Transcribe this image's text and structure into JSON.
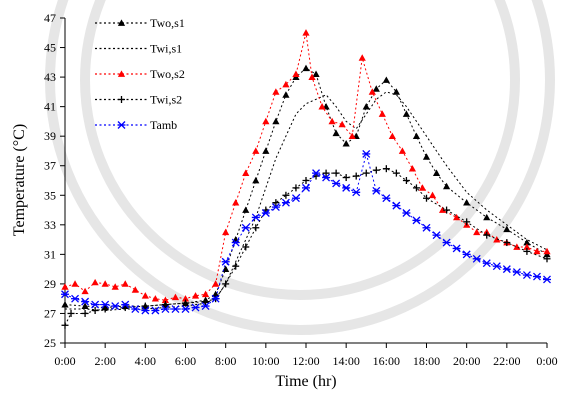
{
  "chart_data": {
    "type": "scatter",
    "xlabel": "Time (hr)",
    "ylabel": "Temperature (°C)",
    "xlim": [
      0,
      24
    ],
    "ylim": [
      25,
      47
    ],
    "xticks": [
      0,
      2,
      4,
      6,
      8,
      10,
      12,
      14,
      16,
      18,
      20,
      22,
      24
    ],
    "xtick_labels": [
      "0:00",
      "2:00",
      "4:00",
      "6:00",
      "8:00",
      "10:00",
      "12:00",
      "14:00",
      "16:00",
      "18:00",
      "20:00",
      "22:00",
      "0:00"
    ],
    "yticks": [
      25,
      27,
      29,
      31,
      33,
      35,
      37,
      39,
      41,
      43,
      45,
      47
    ],
    "ytick_labels": [
      "25",
      "27",
      "29",
      "31",
      "33",
      "35",
      "37",
      "39",
      "41",
      "43",
      "45",
      "47"
    ],
    "grid": false,
    "legend_position": "top-left",
    "series": [
      {
        "name": "Two,s1",
        "color": "#000000",
        "marker": "triangle",
        "points": [
          [
            0,
            27.6
          ],
          [
            1,
            27.5
          ],
          [
            2,
            27.4
          ],
          [
            3,
            27.5
          ],
          [
            4,
            27.5
          ],
          [
            5,
            27.6
          ],
          [
            6,
            27.7
          ],
          [
            7,
            27.9
          ],
          [
            7.5,
            28.3
          ],
          [
            8,
            30.0
          ],
          [
            8.5,
            32.0
          ],
          [
            9,
            34.0
          ],
          [
            9.5,
            36.0
          ],
          [
            10,
            38.0
          ],
          [
            10.5,
            40.0
          ],
          [
            11,
            41.8
          ],
          [
            11.5,
            43.0
          ],
          [
            12,
            43.6
          ],
          [
            12.5,
            43.2
          ],
          [
            13,
            41.0
          ],
          [
            13.5,
            39.2
          ],
          [
            14,
            38.5
          ],
          [
            14.5,
            39.0
          ],
          [
            15,
            41.0
          ],
          [
            15.5,
            42.2
          ],
          [
            16,
            42.8
          ],
          [
            16.5,
            42.0
          ],
          [
            17,
            40.5
          ],
          [
            17.5,
            39.0
          ],
          [
            18,
            37.6
          ],
          [
            18.5,
            36.5
          ],
          [
            19,
            35.6
          ],
          [
            20,
            34.5
          ],
          [
            21,
            33.5
          ],
          [
            22,
            32.7
          ],
          [
            23,
            31.8
          ],
          [
            24,
            31.0
          ]
        ]
      },
      {
        "name": "Twi,s1",
        "color": "#000000",
        "marker": "none",
        "points": [
          [
            0,
            27.3
          ],
          [
            1,
            27.3
          ],
          [
            2,
            27.2
          ],
          [
            3,
            27.3
          ],
          [
            4,
            27.3
          ],
          [
            5,
            27.4
          ],
          [
            6,
            27.5
          ],
          [
            7,
            27.7
          ],
          [
            7.5,
            28.0
          ],
          [
            8,
            29.0
          ],
          [
            8.5,
            30.5
          ],
          [
            9,
            32.0
          ],
          [
            9.5,
            33.5
          ],
          [
            10,
            35.5
          ],
          [
            10.5,
            37.5
          ],
          [
            11,
            39.0
          ],
          [
            11.5,
            40.5
          ],
          [
            12,
            41.2
          ],
          [
            12.5,
            41.5
          ],
          [
            13,
            41.8
          ],
          [
            13.5,
            41.0
          ],
          [
            14,
            40.0
          ],
          [
            14.5,
            39.5
          ],
          [
            15,
            40.5
          ],
          [
            15.5,
            41.5
          ],
          [
            16,
            42.0
          ],
          [
            16.5,
            41.8
          ],
          [
            17,
            41.0
          ],
          [
            17.5,
            40.0
          ],
          [
            18,
            39.0
          ],
          [
            18.5,
            38.0
          ],
          [
            19,
            37.0
          ],
          [
            20,
            35.2
          ],
          [
            21,
            34.0
          ],
          [
            22,
            33.0
          ],
          [
            23,
            32.0
          ],
          [
            24,
            31.3
          ]
        ]
      },
      {
        "name": "Two,s2",
        "color": "#ff0000",
        "marker": "triangle",
        "points": [
          [
            0,
            28.8
          ],
          [
            0.5,
            29.0
          ],
          [
            1,
            28.5
          ],
          [
            1.5,
            29.1
          ],
          [
            2,
            29.0
          ],
          [
            2.5,
            28.8
          ],
          [
            3,
            29.0
          ],
          [
            3.5,
            28.6
          ],
          [
            4,
            28.2
          ],
          [
            4.5,
            28.0
          ],
          [
            5,
            27.9
          ],
          [
            5.5,
            28.1
          ],
          [
            6,
            28.0
          ],
          [
            6.5,
            28.2
          ],
          [
            7,
            28.3
          ],
          [
            7.5,
            29.0
          ],
          [
            8,
            32.5
          ],
          [
            8.5,
            34.5
          ],
          [
            9,
            36.5
          ],
          [
            9.5,
            38.0
          ],
          [
            10,
            40.0
          ],
          [
            10.5,
            42.0
          ],
          [
            11,
            42.5
          ],
          [
            11.5,
            43.2
          ],
          [
            12,
            46.0
          ],
          [
            12.3,
            43.0
          ],
          [
            12.8,
            41.0
          ],
          [
            13.3,
            40.0
          ],
          [
            13.8,
            39.8
          ],
          [
            14.3,
            39.0
          ],
          [
            14.8,
            44.3
          ],
          [
            15.3,
            42.0
          ],
          [
            15.8,
            40.5
          ],
          [
            16.3,
            39.0
          ],
          [
            16.8,
            38.0
          ],
          [
            17.3,
            36.8
          ],
          [
            17.8,
            35.5
          ],
          [
            18.3,
            35.0
          ],
          [
            18.8,
            34.0
          ],
          [
            19.5,
            33.5
          ],
          [
            20,
            33.0
          ],
          [
            20.5,
            32.5
          ],
          [
            21,
            32.5
          ],
          [
            21.5,
            32.0
          ],
          [
            22,
            31.8
          ],
          [
            22.5,
            31.5
          ],
          [
            23,
            31.5
          ],
          [
            23.5,
            31.2
          ],
          [
            24,
            31.2
          ]
        ]
      },
      {
        "name": "Twi,s2",
        "color": "#000000",
        "marker": "plus",
        "points": [
          [
            0,
            26.2
          ],
          [
            0.3,
            27.0
          ],
          [
            1,
            27.0
          ],
          [
            1.5,
            27.2
          ],
          [
            2,
            27.3
          ],
          [
            3,
            27.4
          ],
          [
            4,
            27.5
          ],
          [
            5,
            27.6
          ],
          [
            6,
            27.7
          ],
          [
            7,
            27.8
          ],
          [
            7.5,
            28.0
          ],
          [
            8,
            29.0
          ],
          [
            8.5,
            30.2
          ],
          [
            9,
            31.5
          ],
          [
            9.5,
            32.8
          ],
          [
            10,
            34.0
          ],
          [
            10.5,
            34.5
          ],
          [
            11,
            35.0
          ],
          [
            11.5,
            35.5
          ],
          [
            12,
            36.0
          ],
          [
            12.5,
            36.3
          ],
          [
            13,
            36.5
          ],
          [
            13.5,
            36.5
          ],
          [
            14,
            36.2
          ],
          [
            14.5,
            36.3
          ],
          [
            15,
            36.5
          ],
          [
            15.5,
            36.7
          ],
          [
            16,
            36.8
          ],
          [
            16.5,
            36.5
          ],
          [
            17,
            36.0
          ],
          [
            17.5,
            35.5
          ],
          [
            18,
            34.8
          ],
          [
            19,
            34.0
          ],
          [
            20,
            33.2
          ],
          [
            21,
            32.3
          ],
          [
            22,
            31.8
          ],
          [
            23,
            31.2
          ],
          [
            24,
            30.7
          ]
        ]
      },
      {
        "name": "Tamb",
        "color": "#0000ff",
        "marker": "star",
        "points": [
          [
            0,
            28.3
          ],
          [
            0.5,
            28.0
          ],
          [
            1,
            27.8
          ],
          [
            1.5,
            27.6
          ],
          [
            2,
            27.6
          ],
          [
            2.5,
            27.5
          ],
          [
            3,
            27.6
          ],
          [
            3.5,
            27.3
          ],
          [
            4,
            27.2
          ],
          [
            4.5,
            27.2
          ],
          [
            5,
            27.3
          ],
          [
            5.5,
            27.3
          ],
          [
            6,
            27.3
          ],
          [
            6.5,
            27.4
          ],
          [
            7,
            27.5
          ],
          [
            7.5,
            28.0
          ],
          [
            8,
            30.5
          ],
          [
            8.5,
            31.8
          ],
          [
            9,
            32.8
          ],
          [
            9.5,
            33.5
          ],
          [
            10,
            33.8
          ],
          [
            10.5,
            34.2
          ],
          [
            11,
            34.5
          ],
          [
            11.5,
            34.8
          ],
          [
            12,
            35.5
          ],
          [
            12.5,
            36.5
          ],
          [
            13,
            36.2
          ],
          [
            13.5,
            35.8
          ],
          [
            14,
            35.5
          ],
          [
            14.5,
            35.2
          ],
          [
            15,
            37.8
          ],
          [
            15.5,
            35.3
          ],
          [
            16,
            34.8
          ],
          [
            16.5,
            34.3
          ],
          [
            17,
            33.8
          ],
          [
            17.5,
            33.3
          ],
          [
            18,
            32.8
          ],
          [
            18.5,
            32.3
          ],
          [
            19,
            31.8
          ],
          [
            19.5,
            31.4
          ],
          [
            20,
            31.0
          ],
          [
            20.5,
            30.7
          ],
          [
            21,
            30.4
          ],
          [
            21.5,
            30.2
          ],
          [
            22,
            30.0
          ],
          [
            22.5,
            29.8
          ],
          [
            23,
            29.6
          ],
          [
            23.5,
            29.5
          ],
          [
            24,
            29.3
          ]
        ]
      }
    ]
  }
}
